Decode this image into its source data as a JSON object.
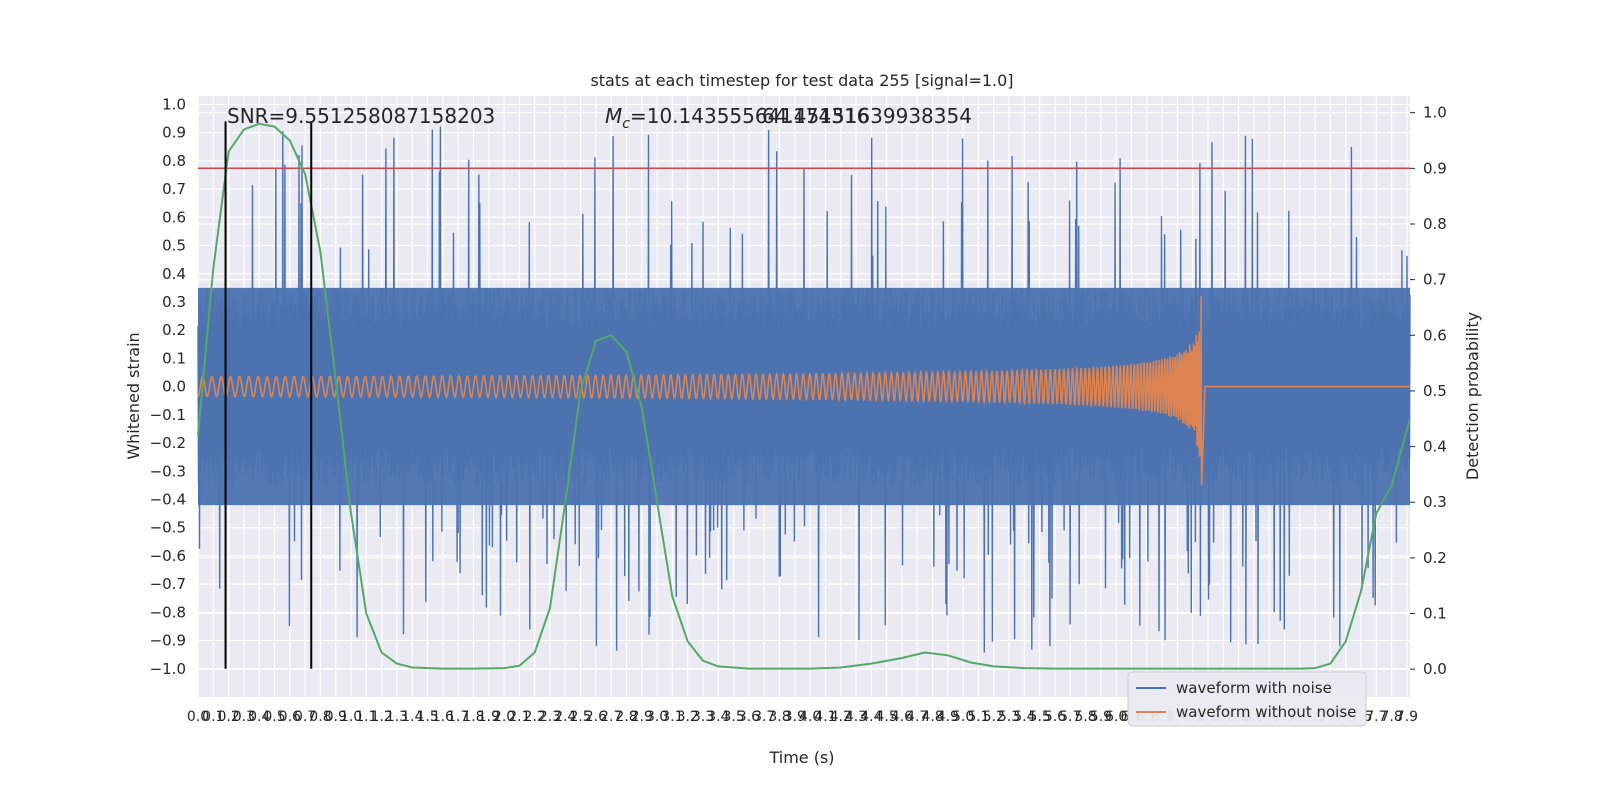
{
  "chart_data": {
    "type": "line",
    "title": "stats at each timestep for test data 255 [signal=1.0]",
    "xlabel": "Time (s)",
    "ylabel_left": "Whitened strain",
    "ylabel_right": "Detection probability",
    "xlim": [
      0.0,
      7.92
    ],
    "ylim_left": [
      -1.1,
      1.03
    ],
    "ylim_right": [
      -0.05,
      1.03
    ],
    "grid": true,
    "legend_position": "bottom-right",
    "x_ticks": [
      "0.0",
      "0.1",
      "0.2",
      "0.3",
      "0.4",
      "0.5",
      "0.6",
      "0.7",
      "0.8",
      "0.9",
      "1.0",
      "1.1",
      "1.2",
      "1.3",
      "1.4",
      "1.5",
      "1.6",
      "1.7",
      "1.8",
      "1.9",
      "2.0",
      "2.1",
      "2.2",
      "2.3",
      "2.4",
      "2.5",
      "2.6",
      "2.7",
      "2.8",
      "2.9",
      "3.0",
      "3.1",
      "3.2",
      "3.3",
      "3.4",
      "3.5",
      "3.6",
      "3.7",
      "3.8",
      "3.9",
      "4.0",
      "4.1",
      "4.2",
      "4.3",
      "4.4",
      "4.5",
      "4.6",
      "4.7",
      "4.8",
      "4.9",
      "5.0",
      "5.1",
      "5.2",
      "5.3",
      "5.4",
      "5.5",
      "5.6",
      "5.7",
      "5.8",
      "5.9",
      "6.0",
      "6.1",
      "6.2",
      "6.3",
      "6.4",
      "6.5",
      "6.6",
      "6.7",
      "6.8",
      "6.9",
      "7.0",
      "7.1",
      "7.2",
      "7.3",
      "7.4",
      "7.5",
      "7.6",
      "7.7",
      "7.8",
      "7.9"
    ],
    "y_ticks_left": [
      "1.0",
      "0.9",
      "0.8",
      "0.7",
      "0.6",
      "0.5",
      "0.4",
      "0.3",
      "0.2",
      "0.1",
      "0.0",
      "−0.1",
      "−0.2",
      "−0.3",
      "−0.4",
      "−0.5",
      "−0.6",
      "−0.7",
      "−0.8",
      "−0.9",
      "−1.0"
    ],
    "y_ticks_right": [
      "1.0",
      "0.9",
      "0.8",
      "0.7",
      "0.6",
      "0.5",
      "0.4",
      "0.3",
      "0.2",
      "0.1",
      "0.0"
    ],
    "annotations": {
      "snr": "SNR=9.551258087158203",
      "mc_symbol": "M",
      "mc_sub": "c",
      "mc_value": "=10.143555641174316",
      "overlap_text": "64.45151639938354"
    },
    "series": [
      {
        "name": "waveform with noise",
        "color": "#4c72b0",
        "note_envelope": {
          "typical_amplitude": 0.35,
          "peak_max": 0.93,
          "peak_min": -1.0
        }
      },
      {
        "name": "waveform without noise",
        "color": "#dd8452",
        "chirp": {
          "start_amplitude": 0.015,
          "end_amplitude": 0.3,
          "merger_time": 6.56,
          "min_at_merger": -0.33
        }
      },
      {
        "name": "detection probability",
        "color": "#55a868",
        "axis": "right",
        "x": [
          0.0,
          0.1,
          0.2,
          0.3,
          0.4,
          0.5,
          0.6,
          0.7,
          0.8,
          0.9,
          1.0,
          1.1,
          1.2,
          1.3,
          1.4,
          1.6,
          1.8,
          2.0,
          2.1,
          2.2,
          2.3,
          2.4,
          2.5,
          2.6,
          2.7,
          2.8,
          2.9,
          3.0,
          3.1,
          3.2,
          3.3,
          3.4,
          3.6,
          3.8,
          4.0,
          4.2,
          4.4,
          4.6,
          4.75,
          4.9,
          5.05,
          5.2,
          5.4,
          5.6,
          5.8,
          6.0,
          6.2,
          6.4,
          6.6,
          6.8,
          7.0,
          7.2,
          7.3,
          7.4,
          7.5,
          7.6,
          7.7,
          7.8,
          7.92
        ],
        "y": [
          0.42,
          0.72,
          0.93,
          0.97,
          0.98,
          0.975,
          0.95,
          0.89,
          0.75,
          0.52,
          0.28,
          0.1,
          0.03,
          0.01,
          0.003,
          0.001,
          0.001,
          0.002,
          0.006,
          0.03,
          0.11,
          0.3,
          0.5,
          0.59,
          0.6,
          0.57,
          0.47,
          0.3,
          0.13,
          0.05,
          0.015,
          0.005,
          0.001,
          0.001,
          0.001,
          0.003,
          0.01,
          0.02,
          0.03,
          0.025,
          0.012,
          0.005,
          0.002,
          0.001,
          0.001,
          0.001,
          0.001,
          0.001,
          0.001,
          0.001,
          0.001,
          0.001,
          0.002,
          0.01,
          0.05,
          0.14,
          0.28,
          0.33,
          0.45
        ]
      },
      {
        "name": "threshold",
        "color": "#c44e52",
        "axis": "right",
        "value": 0.9
      }
    ],
    "vertical_markers": [
      0.18,
      0.74
    ],
    "legend": [
      "waveform with noise",
      "waveform without noise"
    ]
  }
}
